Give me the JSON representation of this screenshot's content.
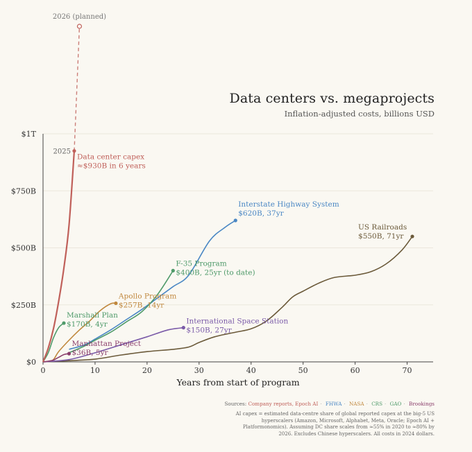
{
  "title": "Data centers vs. megaprojects",
  "subtitle": "Inflation-adjusted costs, billions USD",
  "sources": {
    "label": "Sources:",
    "items": [
      {
        "text": "Company reports, Epoch AI",
        "color": "#c0605a"
      },
      {
        "text": "FHWA",
        "color": "#4a87c4"
      },
      {
        "text": "NASA",
        "color": "#c0883e"
      },
      {
        "text": "CRS",
        "color": "#4f9a6a"
      },
      {
        "text": "GAO",
        "color": "#4f9a6a"
      },
      {
        "text": "Brookings",
        "color": "#8a3d6b"
      }
    ]
  },
  "note": "AI capex = estimated data-centre share of global reported capex at the big-5 US hyperscalers (Amazon, Microsoft, Alphabet, Meta, Oracle; Epoch AI + Platformonomics). Assuming DC share scales from ≈55% in 2020 to ≈80% by 2026. Excludes Chinese hyperscalers. All costs in 2024 dollars.",
  "chart_data": {
    "type": "line",
    "xlabel": "Years from start of program",
    "ylabel": "",
    "xlim": [
      0,
      75
    ],
    "ylim": [
      0,
      1000
    ],
    "x_ticks": [
      0,
      10,
      20,
      30,
      40,
      50,
      60,
      70
    ],
    "y_ticks": [
      {
        "value": 0,
        "label": "$0"
      },
      {
        "value": 250,
        "label": "$250B"
      },
      {
        "value": 500,
        "label": "$500B"
      },
      {
        "value": 750,
        "label": "$750B"
      },
      {
        "value": 1000,
        "label": "$1T"
      }
    ],
    "grid": true,
    "series": [
      {
        "id": "us-railroads",
        "color": "#6b5a3a",
        "label": [
          "US Railroads",
          "$550B, 71yr"
        ],
        "label_side": "left-above",
        "points": [
          [
            0,
            0
          ],
          [
            5,
            5
          ],
          [
            10,
            12
          ],
          [
            15,
            30
          ],
          [
            20,
            45
          ],
          [
            25,
            55
          ],
          [
            28,
            65
          ],
          [
            30,
            85
          ],
          [
            33,
            110
          ],
          [
            37,
            130
          ],
          [
            40,
            145
          ],
          [
            43,
            180
          ],
          [
            46,
            240
          ],
          [
            48,
            285
          ],
          [
            50,
            310
          ],
          [
            53,
            345
          ],
          [
            56,
            370
          ],
          [
            60,
            380
          ],
          [
            63,
            395
          ],
          [
            66,
            430
          ],
          [
            69,
            490
          ],
          [
            71,
            550
          ]
        ]
      },
      {
        "id": "interstate-highway",
        "color": "#4a87c4",
        "label": [
          "Interstate Highway System",
          "$620B, 37yr"
        ],
        "label_side": "right",
        "points": [
          [
            5,
            55
          ],
          [
            8,
            75
          ],
          [
            10,
            100
          ],
          [
            13,
            140
          ],
          [
            16,
            185
          ],
          [
            19,
            230
          ],
          [
            22,
            280
          ],
          [
            25,
            330
          ],
          [
            28,
            380
          ],
          [
            32,
            530
          ],
          [
            35,
            590
          ],
          [
            37,
            620
          ]
        ]
      },
      {
        "id": "f35",
        "color": "#4f9a6a",
        "label": [
          "F-35 Program",
          "$400B, 25yr (to date)"
        ],
        "label_side": "right",
        "points": [
          [
            5,
            40
          ],
          [
            8,
            70
          ],
          [
            10,
            95
          ],
          [
            13,
            130
          ],
          [
            16,
            175
          ],
          [
            19,
            220
          ],
          [
            22,
            295
          ],
          [
            25,
            400
          ]
        ]
      },
      {
        "id": "apollo",
        "color": "#c0883e",
        "label": [
          "Apollo Program",
          "$257B, 14yr"
        ],
        "label_side": "right",
        "points": [
          [
            1,
            2
          ],
          [
            2,
            10
          ],
          [
            3,
            45
          ],
          [
            5,
            95
          ],
          [
            7,
            140
          ],
          [
            9,
            180
          ],
          [
            11,
            225
          ],
          [
            13,
            255
          ],
          [
            14,
            257
          ]
        ]
      },
      {
        "id": "marshall-plan",
        "color": "#4f9a6a",
        "label": [
          "Marshall Plan",
          "$170B, 4yr"
        ],
        "label_side": "right",
        "points": [
          [
            0,
            0
          ],
          [
            1,
            40
          ],
          [
            2,
            105
          ],
          [
            3,
            150
          ],
          [
            4,
            170
          ]
        ]
      },
      {
        "id": "iss",
        "color": "#7a5aa8",
        "label": [
          "International Space Station",
          "$150B, 27yr"
        ],
        "label_side": "right",
        "points": [
          [
            0,
            0
          ],
          [
            5,
            10
          ],
          [
            10,
            40
          ],
          [
            15,
            75
          ],
          [
            20,
            110
          ],
          [
            24,
            140
          ],
          [
            27,
            150
          ]
        ]
      },
      {
        "id": "manhattan",
        "color": "#8a3d6b",
        "label": [
          "Manhattan Project",
          "$36B, 5yr"
        ],
        "label_side": "right",
        "points": [
          [
            0,
            0
          ],
          [
            1,
            3
          ],
          [
            2,
            8
          ],
          [
            3,
            20
          ],
          [
            4,
            32
          ],
          [
            5,
            36
          ]
        ]
      },
      {
        "id": "data-center-capex",
        "color": "#c0605a",
        "label": [
          "Data center capex",
          "≈$930B in 6 years"
        ],
        "label_side": "right",
        "end_tag": "2025",
        "points": [
          [
            0,
            0
          ],
          [
            1,
            60
          ],
          [
            2,
            145
          ],
          [
            3,
            265
          ],
          [
            4,
            410
          ],
          [
            5,
            600
          ],
          [
            6,
            925
          ]
        ]
      }
    ],
    "projection": {
      "series_id": "data-center-capex",
      "label": "2026 (planned)",
      "points": [
        [
          6,
          925
        ],
        [
          7,
          1470
        ]
      ]
    }
  }
}
